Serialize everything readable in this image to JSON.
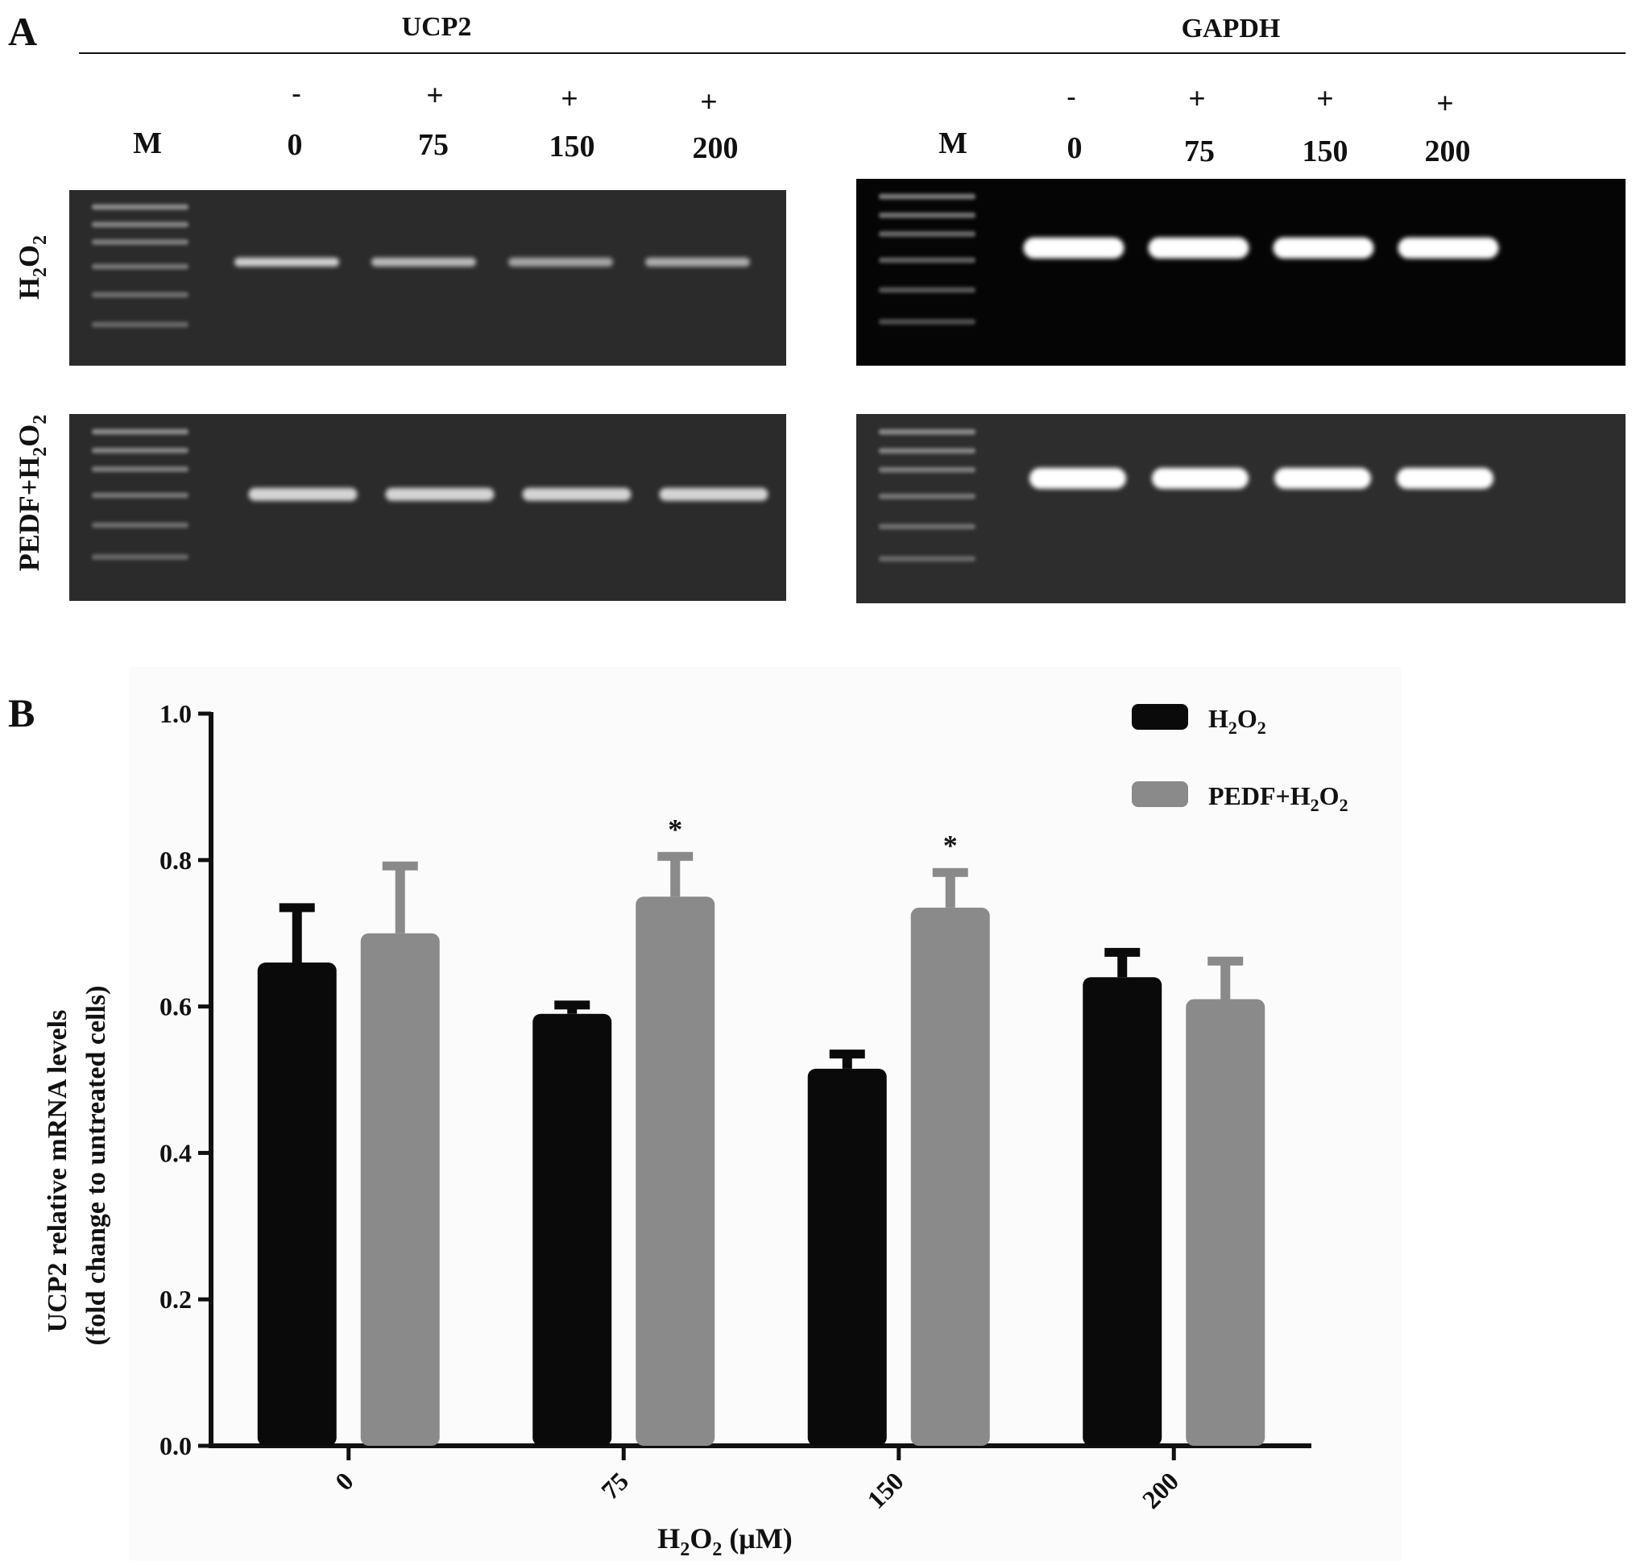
{
  "panel_a": {
    "letter": "A",
    "ucp2_title": "UCP2",
    "gapdh_title": "GAPDH",
    "marker": "M",
    "signs": [
      "-",
      "+",
      "+",
      "+"
    ],
    "lanes": [
      "0",
      "75",
      "150",
      "200"
    ],
    "row_labels": [
      {
        "main": "H",
        "sub1": "2",
        "mid": "O",
        "sub2": "2",
        "prefix": ""
      },
      {
        "main": "H",
        "sub1": "2",
        "mid": "O",
        "sub2": "2",
        "prefix": "PEDF+"
      }
    ],
    "gels": {
      "ucp2_h2o2": [
        0.78,
        0.68,
        0.58,
        0.62
      ],
      "ucp2_pedf": [
        0.8,
        0.8,
        0.8,
        0.8
      ],
      "gapdh_h2o2": [
        1.0,
        1.0,
        1.0,
        1.0
      ],
      "gapdh_pedf": [
        1.0,
        1.0,
        1.0,
        1.0
      ]
    }
  },
  "chart_data": {
    "type": "bar",
    "panel_letter": "B",
    "categories": [
      "0",
      "75",
      "150",
      "200"
    ],
    "series": [
      {
        "name": "H2O2",
        "color": "#0a0a0a",
        "values": [
          0.66,
          0.59,
          0.515,
          0.64
        ],
        "errors": [
          0.075,
          0.012,
          0.02,
          0.034
        ]
      },
      {
        "name": "PEDF+H2O2",
        "color": "#8a8a8a",
        "values": [
          0.7,
          0.75,
          0.735,
          0.61
        ],
        "errors": [
          0.092,
          0.055,
          0.048,
          0.052
        ]
      }
    ],
    "significance": [
      "",
      "*",
      "*",
      ""
    ],
    "ylim": [
      0.0,
      1.0
    ],
    "yticks": [
      "0.0",
      "0.2",
      "0.4",
      "0.6",
      "0.8",
      "1.0"
    ],
    "ylabel_line1": "UCP2 relative mRNA levels",
    "ylabel_line2": "(fold change to untreated cells)",
    "xlabel": {
      "main": "H",
      "sub1": "2",
      "mid": "O",
      "sub2": "2",
      "unit": " (μM)"
    },
    "legend": [
      {
        "main": "H",
        "sub1": "2",
        "mid": "O",
        "sub2": "2",
        "prefix": "",
        "color": "#0a0a0a"
      },
      {
        "main": "H",
        "sub1": "2",
        "mid": "O",
        "sub2": "2",
        "prefix": "PEDF+",
        "color": "#8a8a8a"
      }
    ]
  }
}
